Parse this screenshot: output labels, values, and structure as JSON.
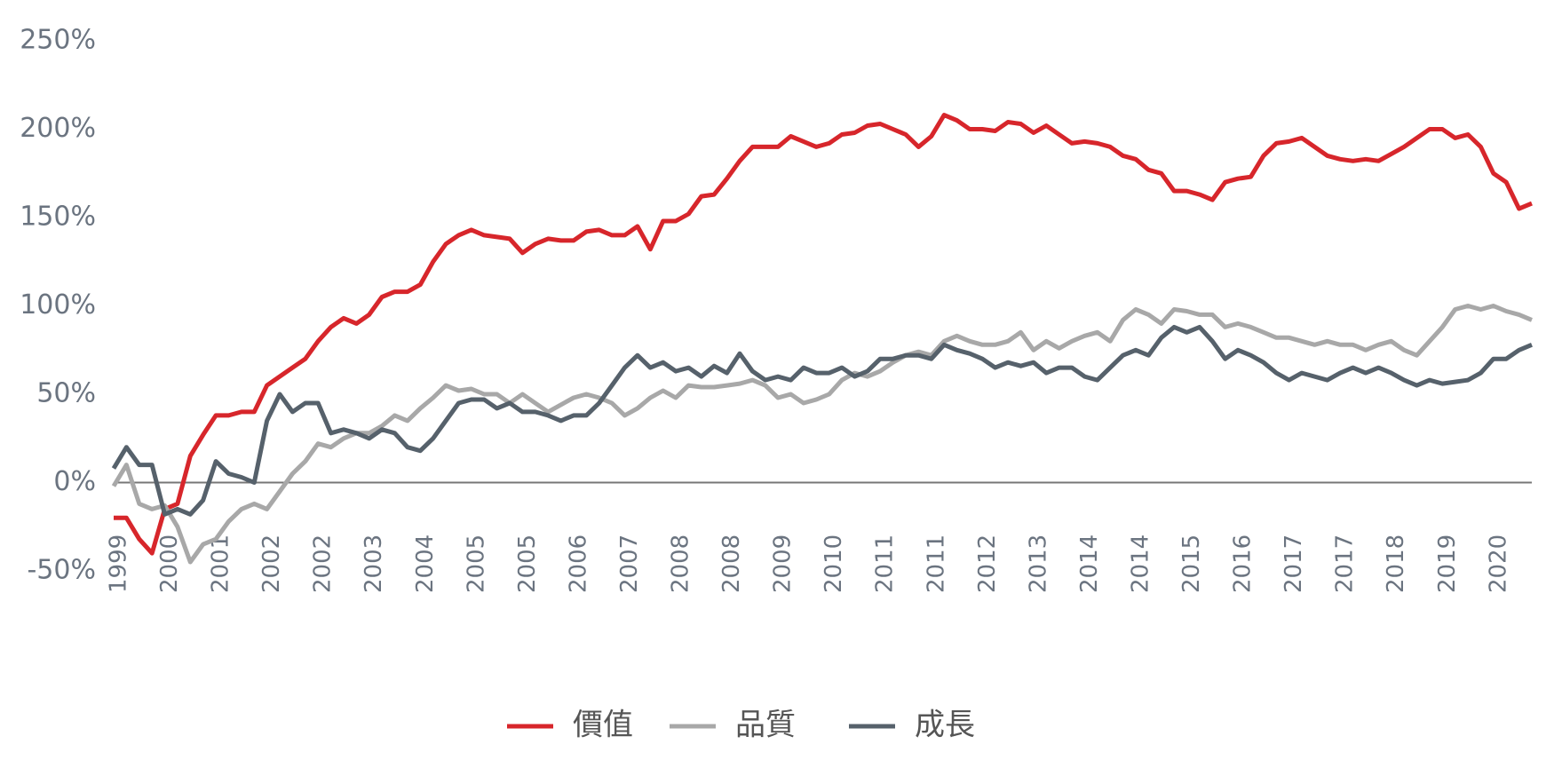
{
  "chart_data": {
    "type": "line",
    "categories": [
      "1999",
      null,
      null,
      null,
      "2000",
      null,
      null,
      null,
      "2001",
      null,
      null,
      null,
      "2002",
      null,
      null,
      null,
      "2002",
      null,
      null,
      null,
      "2003",
      null,
      null,
      null,
      "2004",
      null,
      null,
      null,
      "2005",
      null,
      null,
      null,
      "2005",
      null,
      null,
      null,
      "2006",
      null,
      null,
      null,
      "2007",
      null,
      null,
      null,
      "2008",
      null,
      null,
      null,
      "2008",
      null,
      null,
      null,
      "2009",
      null,
      null,
      null,
      "2010",
      null,
      null,
      null,
      "2011",
      null,
      null,
      null,
      "2011",
      null,
      null,
      null,
      "2012",
      null,
      null,
      null,
      "2013",
      null,
      null,
      null,
      "2014",
      null,
      null,
      null,
      "2014",
      null,
      null,
      null,
      "2015",
      null,
      null,
      null,
      "2016",
      null,
      null,
      null,
      "2017",
      null,
      null,
      null,
      "2017",
      null,
      null,
      null,
      "2018",
      null,
      null,
      null,
      "2019",
      null,
      null,
      null,
      "2020",
      null,
      null,
      null
    ],
    "series": [
      {
        "name": "價值",
        "color": "#d7262b",
        "values": [
          -20,
          -20,
          -32,
          -40,
          -15,
          -12,
          15,
          27,
          38,
          38,
          40,
          40,
          55,
          60,
          65,
          70,
          80,
          88,
          93,
          90,
          95,
          105,
          108,
          108,
          112,
          125,
          135,
          140,
          143,
          140,
          139,
          138,
          130,
          135,
          138,
          137,
          137,
          142,
          143,
          140,
          140,
          145,
          132,
          148,
          148,
          152,
          162,
          163,
          172,
          182,
          190,
          190,
          190,
          196,
          193,
          190,
          192,
          197,
          198,
          202,
          203,
          200,
          197,
          190,
          196,
          208,
          205,
          200,
          200,
          199,
          204,
          203,
          198,
          202,
          197,
          192,
          193,
          192,
          190,
          185,
          183,
          177,
          175,
          165,
          165,
          163,
          160,
          170,
          172,
          173,
          185,
          192,
          193,
          195,
          190,
          185,
          183,
          182,
          183,
          182,
          186,
          190,
          195,
          200,
          200,
          195,
          197,
          190,
          175,
          170,
          155,
          158
        ]
      },
      {
        "name": "品質",
        "color": "#a8a8a8",
        "values": [
          -2,
          10,
          -12,
          -15,
          -13,
          -25,
          -45,
          -35,
          -32,
          -22,
          -15,
          -12,
          -15,
          -5,
          5,
          12,
          22,
          20,
          25,
          28,
          28,
          32,
          38,
          35,
          42,
          48,
          55,
          52,
          53,
          50,
          50,
          45,
          50,
          45,
          40,
          44,
          48,
          50,
          48,
          45,
          38,
          42,
          48,
          52,
          48,
          55,
          54,
          54,
          55,
          56,
          58,
          55,
          48,
          50,
          45,
          47,
          50,
          58,
          62,
          60,
          63,
          68,
          72,
          74,
          72,
          80,
          83,
          80,
          78,
          78,
          80,
          85,
          75,
          80,
          76,
          80,
          83,
          85,
          80,
          92,
          98,
          95,
          90,
          98,
          97,
          95,
          95,
          88,
          90,
          88,
          85,
          82,
          82,
          80,
          78,
          80,
          78,
          78,
          75,
          78,
          80,
          75,
          72,
          80,
          88,
          98,
          100,
          98,
          100,
          97,
          95,
          92
        ]
      },
      {
        "name": "成長",
        "color": "#56616b",
        "values": [
          8,
          20,
          10,
          10,
          -18,
          -15,
          -18,
          -10,
          12,
          5,
          3,
          0,
          35,
          50,
          40,
          45,
          45,
          28,
          30,
          28,
          25,
          30,
          28,
          20,
          18,
          25,
          35,
          45,
          47,
          47,
          42,
          45,
          40,
          40,
          38,
          35,
          38,
          38,
          45,
          55,
          65,
          72,
          65,
          68,
          63,
          65,
          60,
          66,
          62,
          73,
          63,
          58,
          60,
          58,
          65,
          62,
          62,
          65,
          60,
          63,
          70,
          70,
          72,
          72,
          70,
          78,
          75,
          73,
          70,
          65,
          68,
          66,
          68,
          62,
          65,
          65,
          60,
          58,
          65,
          72,
          75,
          72,
          82,
          88,
          85,
          88,
          80,
          70,
          75,
          72,
          68,
          62,
          58,
          62,
          60,
          58,
          62,
          65,
          62,
          65,
          62,
          58,
          55,
          58,
          56,
          57,
          58,
          62,
          70,
          70,
          75,
          78
        ]
      }
    ],
    "ylim": [
      -50,
      250
    ],
    "yticks": [
      {
        "value": -50,
        "label": "-50%"
      },
      {
        "value": 0,
        "label": "0%"
      },
      {
        "value": 50,
        "label": "50%"
      },
      {
        "value": 100,
        "label": "100%"
      },
      {
        "value": 150,
        "label": "150%"
      },
      {
        "value": 200,
        "label": "200%"
      },
      {
        "value": 250,
        "label": "250%"
      }
    ],
    "legend": "bottom"
  }
}
